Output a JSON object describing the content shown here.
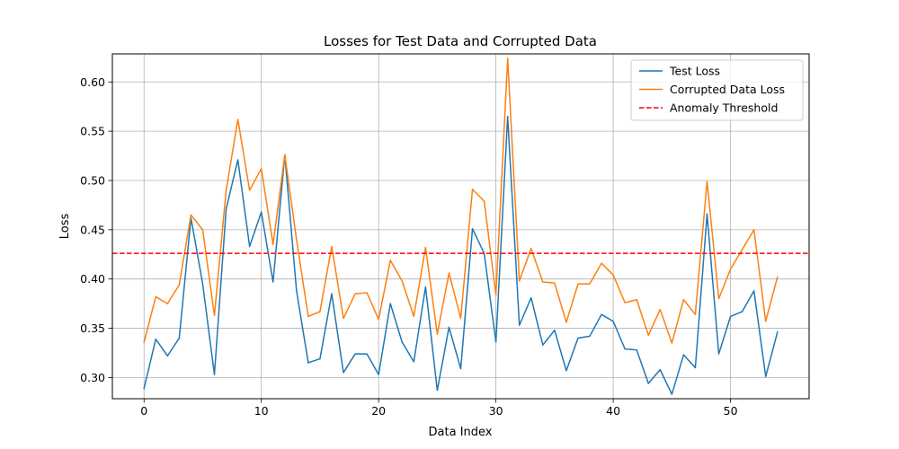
{
  "chart_data": {
    "type": "line",
    "title": "Losses for Test Data and Corrupted Data",
    "xlabel": "Data Index",
    "ylabel": "Loss",
    "xlim": [
      -2.7,
      56.7
    ],
    "ylim": [
      0.2785,
      0.6285
    ],
    "x_ticks": [
      0,
      10,
      20,
      30,
      40,
      50
    ],
    "y_ticks": [
      0.3,
      0.35,
      0.4,
      0.45,
      0.5,
      0.55,
      0.6
    ],
    "grid": true,
    "legend_position": "top-right",
    "series": [
      {
        "name": "Test Loss",
        "color": "#1f77b4",
        "style": "solid",
        "values": [
          0.289,
          0.339,
          0.322,
          0.34,
          0.462,
          0.395,
          0.303,
          0.471,
          0.521,
          0.433,
          0.468,
          0.397,
          0.526,
          0.388,
          0.315,
          0.319,
          0.385,
          0.305,
          0.324,
          0.324,
          0.303,
          0.375,
          0.336,
          0.316,
          0.392,
          0.287,
          0.351,
          0.309,
          0.451,
          0.426,
          0.336,
          0.565,
          0.353,
          0.381,
          0.333,
          0.348,
          0.307,
          0.34,
          0.342,
          0.364,
          0.357,
          0.329,
          0.328,
          0.294,
          0.308,
          0.283,
          0.323,
          0.31,
          0.466,
          0.324,
          0.362,
          0.367,
          0.388,
          0.301,
          0.346
        ]
      },
      {
        "name": "Corrupted Data Loss",
        "color": "#ff7f0e",
        "style": "solid",
        "values": [
          0.336,
          0.382,
          0.375,
          0.394,
          0.465,
          0.45,
          0.363,
          0.49,
          0.562,
          0.49,
          0.512,
          0.435,
          0.526,
          0.44,
          0.362,
          0.367,
          0.433,
          0.36,
          0.385,
          0.386,
          0.359,
          0.419,
          0.398,
          0.362,
          0.432,
          0.344,
          0.406,
          0.36,
          0.491,
          0.479,
          0.384,
          0.624,
          0.398,
          0.431,
          0.397,
          0.396,
          0.356,
          0.395,
          0.395,
          0.416,
          0.404,
          0.376,
          0.379,
          0.343,
          0.369,
          0.335,
          0.379,
          0.364,
          0.499,
          0.38,
          0.41,
          0.43,
          0.45,
          0.357,
          0.402
        ]
      }
    ],
    "threshold": {
      "name": "Anomaly Threshold",
      "value": 0.426,
      "color": "#ff0000",
      "style": "dashed"
    }
  }
}
